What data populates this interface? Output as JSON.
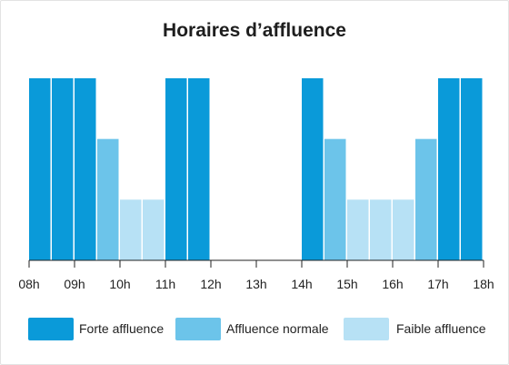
{
  "chart_data": {
    "type": "bar",
    "title": "Horaires d’affluence",
    "xlabel": "",
    "ylabel": "",
    "levels": {
      "3": {
        "label": "Forte affluence",
        "color": "#0a9ad9"
      },
      "2": {
        "label": "Affluence normale",
        "color": "#6cc4ea"
      },
      "1": {
        "label": "Faible affluence",
        "color": "#b7e1f5"
      }
    },
    "x_ticks": [
      "08h",
      "09h",
      "10h",
      "11h",
      "12h",
      "13h",
      "14h",
      "15h",
      "16h",
      "17h",
      "18h"
    ],
    "categories": [
      "08:00",
      "08:30",
      "09:00",
      "09:30",
      "10:00",
      "10:30",
      "11:00",
      "11:30",
      "12:00",
      "12:30",
      "13:00",
      "13:30",
      "14:00",
      "14:30",
      "15:00",
      "15:30",
      "16:00",
      "16:30",
      "17:00",
      "17:30"
    ],
    "values": [
      3,
      3,
      3,
      2,
      1,
      1,
      3,
      3,
      0,
      0,
      0,
      0,
      3,
      2,
      1,
      1,
      1,
      2,
      3,
      3
    ],
    "ylim": [
      0,
      3
    ],
    "grid": false,
    "legend_position": "bottom"
  },
  "legend": [
    {
      "label": "Forte affluence",
      "color": "#0a9ad9"
    },
    {
      "label": "Affluence normale",
      "color": "#6cc4ea"
    },
    {
      "label": "Faible affluence",
      "color": "#b7e1f5"
    }
  ]
}
